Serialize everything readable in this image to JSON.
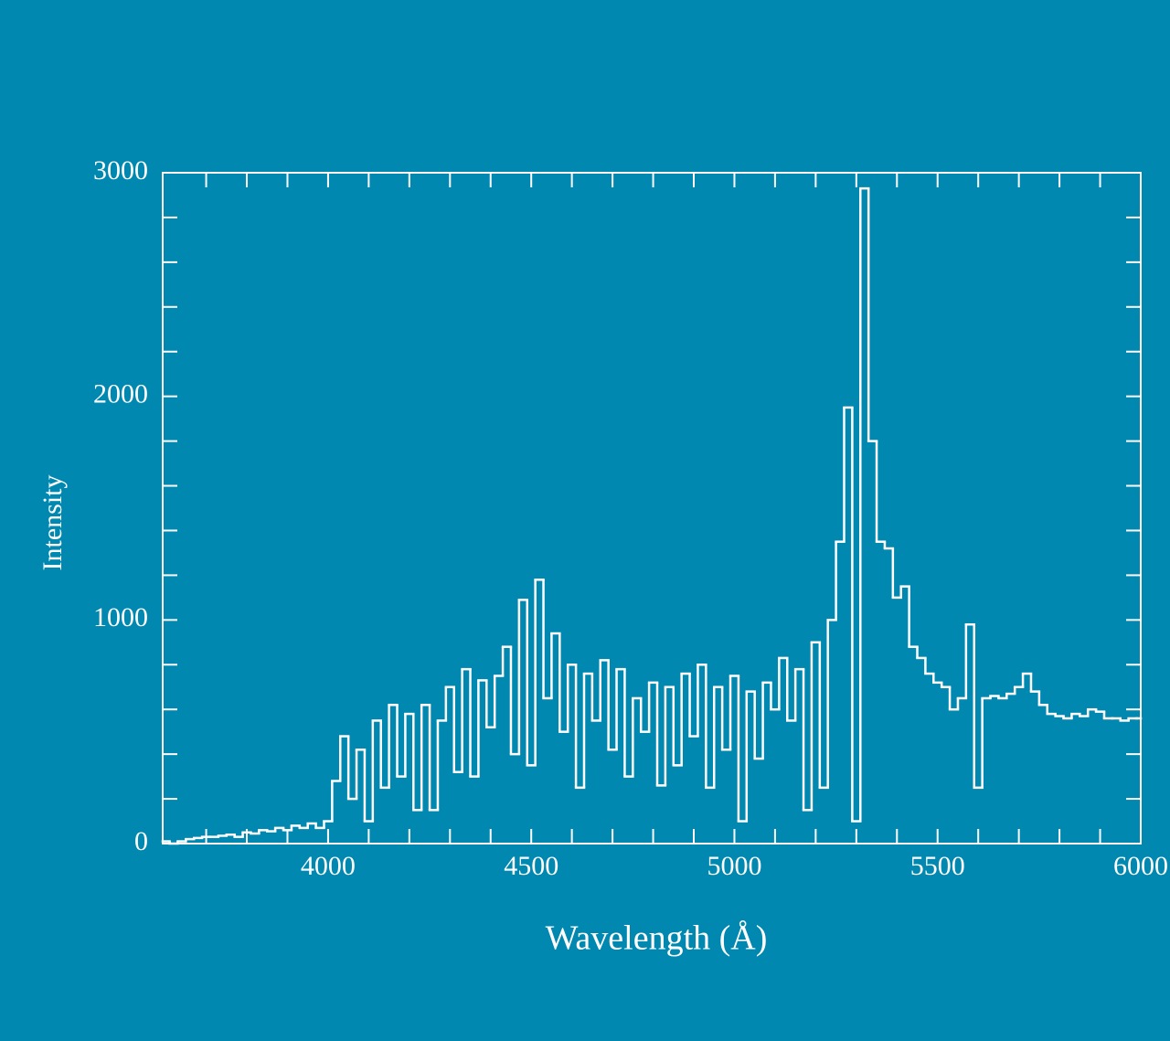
{
  "chart_data": {
    "type": "line",
    "step": "mid",
    "x_label": "Wavelength (Å)",
    "y_label": "Intensity",
    "color": "#ffffff",
    "background": "#0088b0",
    "xlim": [
      3593,
      6000
    ],
    "ylim": [
      0,
      3000
    ],
    "xticks": [
      4000,
      4500,
      5000,
      5500,
      6000
    ],
    "yticks": [
      0,
      1000,
      2000,
      3000
    ],
    "xminorticks": [
      3700,
      3800,
      3900,
      4100,
      4200,
      4300,
      4400,
      4600,
      4700,
      4800,
      4900,
      5100,
      5200,
      5300,
      5400,
      5600,
      5700,
      5800,
      5900
    ],
    "yminorticks": [
      200,
      400,
      600,
      800,
      1200,
      1400,
      1600,
      1800,
      2200,
      2400,
      2600,
      2800
    ],
    "x": [
      3600,
      3620,
      3640,
      3660,
      3680,
      3700,
      3720,
      3740,
      3760,
      3780,
      3800,
      3820,
      3840,
      3860,
      3880,
      3900,
      3920,
      3940,
      3960,
      3980,
      4000,
      4020,
      4040,
      4060,
      4080,
      4100,
      4120,
      4140,
      4160,
      4180,
      4200,
      4220,
      4240,
      4260,
      4280,
      4300,
      4320,
      4340,
      4360,
      4380,
      4400,
      4420,
      4440,
      4460,
      4480,
      4500,
      4520,
      4540,
      4560,
      4580,
      4600,
      4620,
      4640,
      4660,
      4680,
      4700,
      4720,
      4740,
      4760,
      4780,
      4800,
      4820,
      4840,
      4860,
      4880,
      4900,
      4920,
      4940,
      4960,
      4980,
      5000,
      5020,
      5040,
      5060,
      5080,
      5100,
      5120,
      5140,
      5160,
      5180,
      5200,
      5220,
      5240,
      5260,
      5280,
      5300,
      5320,
      5340,
      5360,
      5380,
      5400,
      5420,
      5440,
      5460,
      5480,
      5500,
      5520,
      5540,
      5560,
      5580,
      5600,
      5620,
      5640,
      5660,
      5680,
      5700,
      5720,
      5740,
      5760,
      5780,
      5800,
      5820,
      5840,
      5860,
      5880,
      5900,
      5920,
      5940,
      5960,
      5980,
      6000
    ],
    "values": [
      10,
      0,
      10,
      20,
      25,
      30,
      30,
      35,
      40,
      30,
      50,
      45,
      60,
      55,
      70,
      60,
      80,
      70,
      90,
      70,
      100,
      280,
      480,
      200,
      420,
      100,
      550,
      250,
      620,
      300,
      580,
      150,
      620,
      150,
      550,
      700,
      320,
      780,
      300,
      730,
      520,
      750,
      880,
      400,
      1090,
      350,
      1180,
      650,
      940,
      500,
      800,
      250,
      760,
      550,
      820,
      420,
      780,
      300,
      650,
      500,
      720,
      260,
      700,
      350,
      760,
      480,
      800,
      250,
      700,
      420,
      750,
      100,
      680,
      380,
      720,
      600,
      830,
      550,
      780,
      150,
      900,
      250,
      1000,
      1350,
      1950,
      100,
      2930,
      1800,
      1350,
      1320,
      1100,
      1150,
      880,
      830,
      760,
      720,
      700,
      600,
      650,
      980,
      250,
      650,
      660,
      650,
      670,
      700,
      760,
      680,
      620,
      580,
      570,
      560,
      580,
      570,
      600,
      590,
      560,
      560,
      550,
      560,
      560
    ]
  }
}
